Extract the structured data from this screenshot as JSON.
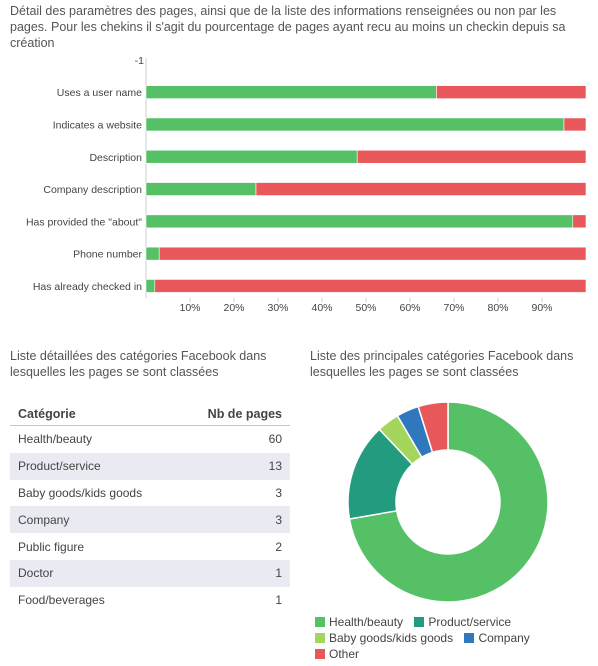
{
  "intro_text": "Détail des paramètres des pages, ainsi que de la liste des informations renseignées ou non par les pages. Pour les chekins il s'agit du pourcentage de pages ayant recu au moins un checkin depuis sa création",
  "colors": {
    "green": "#56c066",
    "red": "#e8585a",
    "teal": "#239b7e",
    "lightgreen": "#a3d65a",
    "blue": "#2f78bd"
  },
  "chart_data": [
    {
      "type": "bar",
      "orientation": "horizontal",
      "stacked": true,
      "categories": [
        "Uses a user name",
        "Indicates a website",
        "Description",
        "Company description",
        "Has provided the \"about\"",
        "Phone number",
        "Has already checked in"
      ],
      "series": [
        {
          "values": [
            66,
            95,
            48,
            25,
            97,
            3,
            2
          ],
          "color": "#56c066"
        },
        {
          "values": [
            34,
            5,
            52,
            75,
            3,
            97,
            98
          ],
          "color": "#e8585a"
        }
      ],
      "xlim": [
        0,
        100
      ],
      "top_tick_label": "-1",
      "xtick_labels": [
        "10%",
        "20%",
        "30%",
        "40%",
        "50%",
        "60%",
        "70%",
        "80%",
        "90%"
      ],
      "xtick_values": [
        10,
        20,
        30,
        40,
        50,
        60,
        70,
        80,
        90
      ]
    },
    {
      "type": "table",
      "title": "Liste détaillées des catégories Facebook dans lesquelles les pages se sont classées",
      "columns": [
        "Catégorie",
        "Nb de pages"
      ],
      "rows": [
        [
          "Health/beauty",
          "60"
        ],
        [
          "Product/service",
          "13"
        ],
        [
          "Baby goods/kids goods",
          "3"
        ],
        [
          "Company",
          "3"
        ],
        [
          "Public figure",
          "2"
        ],
        [
          "Doctor",
          "1"
        ],
        [
          "Food/beverages",
          "1"
        ]
      ]
    },
    {
      "type": "pie",
      "donut": true,
      "title": "Liste des principales catégories Facebook dans lesquelles les pages se sont classées",
      "labels": [
        "Health/beauty",
        "Product/service",
        "Baby goods/kids goods",
        "Company",
        "Other"
      ],
      "values": [
        60,
        13,
        3,
        3,
        4
      ],
      "colors": [
        "#56c066",
        "#239b7e",
        "#a3d65a",
        "#2f78bd",
        "#e8585a"
      ],
      "legend_position": "bottom"
    }
  ]
}
